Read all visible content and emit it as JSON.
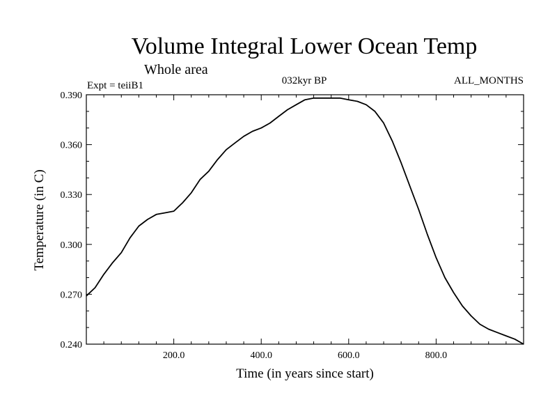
{
  "chart_data": {
    "type": "line",
    "title": "Volume Integral Lower Ocean Temp",
    "subtitle": "Whole area",
    "left_note": "Expt = teiiB1",
    "center_note": "032kyr BP",
    "right_note": "ALL_MONTHS",
    "xlabel": "Time (in years since start)",
    "ylabel": "Temperature (in C)",
    "xlim": [
      0,
      1000
    ],
    "ylim": [
      0.24,
      0.39
    ],
    "xticks": [
      200,
      400,
      600,
      800
    ],
    "xtick_labels": [
      "200.0",
      "400.0",
      "600.0",
      "800.0"
    ],
    "yticks": [
      0.24,
      0.27,
      0.3,
      0.33,
      0.36,
      0.39
    ],
    "ytick_labels": [
      "0.240",
      "0.270",
      "0.300",
      "0.330",
      "0.360",
      "0.390"
    ],
    "grid": false,
    "line_color": "#000000",
    "series": [
      {
        "x": [
          0,
          20,
          40,
          60,
          80,
          100,
          120,
          140,
          160,
          180,
          200,
          220,
          240,
          260,
          280,
          300,
          320,
          340,
          360,
          380,
          400,
          420,
          440,
          460,
          480,
          500,
          520,
          540,
          560,
          580,
          600,
          620,
          640,
          660,
          680,
          700,
          720,
          740,
          760,
          780,
          800,
          820,
          840,
          860,
          880,
          900,
          920,
          940,
          960,
          980,
          1000
        ],
        "y": [
          0.269,
          0.274,
          0.282,
          0.289,
          0.295,
          0.304,
          0.311,
          0.315,
          0.318,
          0.319,
          0.32,
          0.325,
          0.331,
          0.339,
          0.344,
          0.351,
          0.357,
          0.361,
          0.365,
          0.368,
          0.37,
          0.373,
          0.377,
          0.381,
          0.384,
          0.387,
          0.388,
          0.388,
          0.388,
          0.388,
          0.387,
          0.386,
          0.384,
          0.38,
          0.373,
          0.362,
          0.349,
          0.335,
          0.321,
          0.306,
          0.292,
          0.28,
          0.271,
          0.263,
          0.257,
          0.252,
          0.249,
          0.247,
          0.245,
          0.243,
          0.24
        ]
      }
    ]
  }
}
